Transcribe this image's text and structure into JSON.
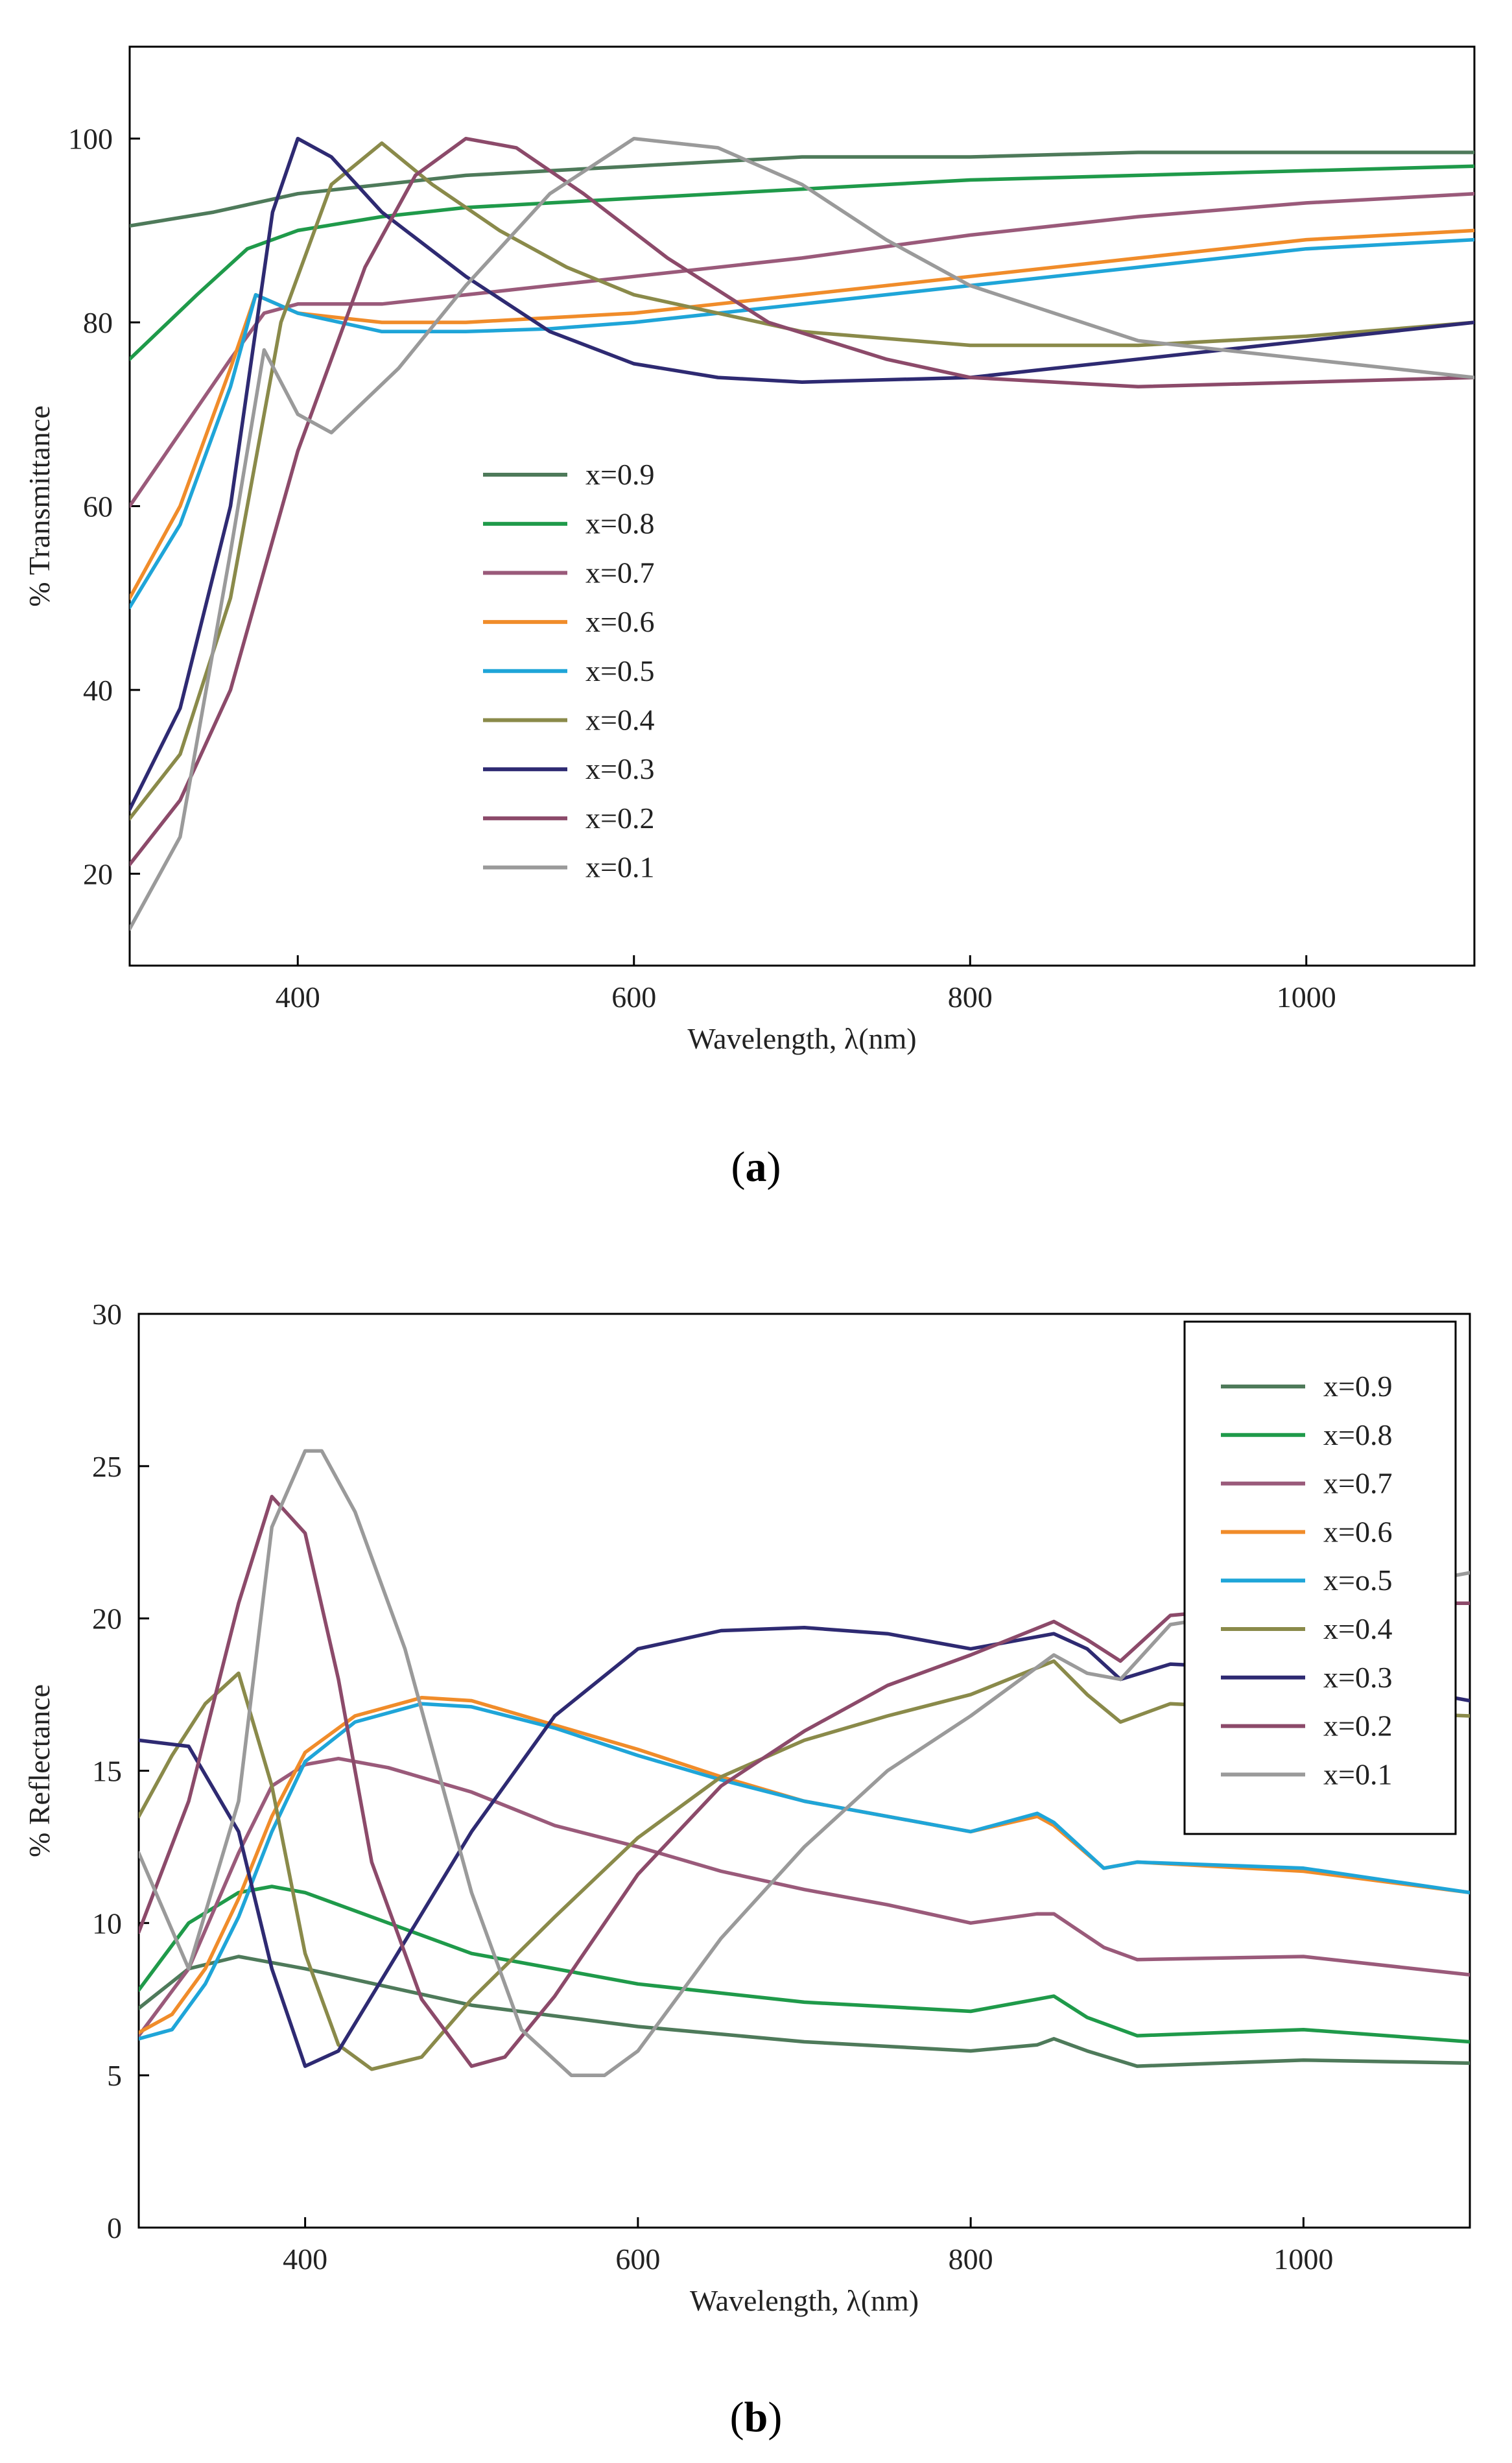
{
  "chart_data": [
    {
      "type": "line",
      "panel": "a",
      "xlabel": "Wavelength, λ(nm)",
      "ylabel": "% Transmittance",
      "xlim": [
        300,
        1100
      ],
      "ylim": [
        10,
        110
      ],
      "xticks": [
        400,
        600,
        800,
        1000
      ],
      "yticks": [
        20,
        40,
        60,
        80,
        100
      ],
      "legend_position": "center-left",
      "legend_frame": false,
      "series": [
        {
          "name": "x=0.9",
          "color": "#4e7a5a",
          "x": [
            300,
            350,
            400,
            500,
            600,
            700,
            800,
            900,
            1000,
            1100
          ],
          "y": [
            90.5,
            92,
            94,
            96,
            97,
            98,
            98,
            98.5,
            98.5,
            98.5
          ]
        },
        {
          "name": "x=0.8",
          "color": "#1f9a4a",
          "x": [
            300,
            340,
            370,
            400,
            450,
            500,
            600,
            700,
            800,
            900,
            1000,
            1100
          ],
          "y": [
            76,
            83,
            88,
            90,
            91.5,
            92.5,
            93.5,
            94.5,
            95.5,
            96,
            96.5,
            97
          ]
        },
        {
          "name": "x=0.7",
          "color": "#9a5a7a",
          "x": [
            300,
            330,
            360,
            380,
            400,
            450,
            500,
            550,
            600,
            700,
            800,
            900,
            1000,
            1100
          ],
          "y": [
            60,
            68,
            76,
            81,
            82,
            82,
            83,
            84,
            85,
            87,
            89.5,
            91.5,
            93,
            94
          ]
        },
        {
          "name": "x=0.6",
          "color": "#f08c2a",
          "x": [
            300,
            330,
            360,
            375,
            400,
            450,
            500,
            550,
            600,
            700,
            800,
            900,
            1000,
            1100
          ],
          "y": [
            50,
            60,
            75,
            83,
            81,
            80,
            80,
            80.5,
            81,
            83,
            85,
            87,
            89,
            90
          ]
        },
        {
          "name": "x=0.5",
          "color": "#1fa5d8",
          "x": [
            300,
            330,
            360,
            375,
            400,
            450,
            500,
            550,
            600,
            700,
            800,
            900,
            1000,
            1100
          ],
          "y": [
            49,
            58,
            73,
            83,
            81,
            79,
            79,
            79.3,
            80,
            82,
            84,
            86,
            88,
            89
          ]
        },
        {
          "name": "x=0.4",
          "color": "#8a8a4a",
          "x": [
            300,
            330,
            360,
            390,
            420,
            450,
            480,
            520,
            560,
            600,
            650,
            700,
            800,
            900,
            1000,
            1100
          ],
          "y": [
            26,
            33,
            50,
            80,
            95,
            99.5,
            95,
            90,
            86,
            83,
            81,
            79,
            77.5,
            77.5,
            78.5,
            80
          ]
        },
        {
          "name": "x=0.3",
          "color": "#2e2a72",
          "x": [
            300,
            330,
            360,
            385,
            400,
            420,
            450,
            500,
            550,
            600,
            650,
            700,
            800,
            900,
            1000,
            1100
          ],
          "y": [
            27,
            38,
            60,
            92,
            100,
            98,
            92,
            85,
            79,
            75.5,
            74,
            73.5,
            74,
            76,
            78,
            80
          ]
        },
        {
          "name": "x=0.2",
          "color": "#8c4a6a",
          "x": [
            300,
            330,
            360,
            400,
            440,
            470,
            500,
            530,
            570,
            620,
            680,
            750,
            800,
            900,
            1000,
            1100
          ],
          "y": [
            21,
            28,
            40,
            66,
            86,
            96,
            100,
            99,
            94,
            87,
            80,
            76,
            74,
            73,
            73.5,
            74
          ]
        },
        {
          "name": "x=0.1",
          "color": "#9a9a9a",
          "x": [
            300,
            330,
            360,
            380,
            400,
            420,
            460,
            500,
            550,
            600,
            650,
            700,
            750,
            800,
            900,
            1000,
            1100
          ],
          "y": [
            14,
            24,
            55,
            77,
            70,
            68,
            75,
            84,
            94,
            100,
            99,
            95,
            89,
            84,
            78,
            76,
            74
          ]
        }
      ]
    },
    {
      "type": "line",
      "panel": "b",
      "xlabel": "Wavelength, λ(nm)",
      "ylabel": "% Reflectance",
      "xlim": [
        300,
        1100
      ],
      "ylim": [
        0,
        30
      ],
      "xticks": [
        400,
        600,
        800,
        1000
      ],
      "yticks": [
        0,
        5,
        10,
        15,
        20,
        25,
        30
      ],
      "legend_position": "top-right",
      "legend_frame": true,
      "series": [
        {
          "name": "x=0.9",
          "color": "#4e7a5a",
          "x": [
            300,
            330,
            360,
            400,
            500,
            600,
            700,
            800,
            840,
            850,
            870,
            900,
            1000,
            1100
          ],
          "y": [
            7.2,
            8.5,
            8.9,
            8.5,
            7.3,
            6.6,
            6.1,
            5.8,
            6,
            6.2,
            5.8,
            5.3,
            5.5,
            5.4
          ]
        },
        {
          "name": "x=0.8",
          "color": "#1f9a4a",
          "x": [
            300,
            330,
            360,
            380,
            400,
            450,
            500,
            600,
            700,
            800,
            840,
            850,
            870,
            900,
            1000,
            1100
          ],
          "y": [
            7.8,
            10,
            11,
            11.2,
            11,
            10,
            9,
            8,
            7.4,
            7.1,
            7.5,
            7.6,
            6.9,
            6.3,
            6.5,
            6.1
          ]
        },
        {
          "name": "x=0.7",
          "color": "#9a5a7a",
          "x": [
            300,
            330,
            360,
            380,
            400,
            420,
            450,
            500,
            550,
            600,
            650,
            700,
            750,
            800,
            840,
            850,
            880,
            900,
            1000,
            1100
          ],
          "y": [
            6.3,
            8.5,
            12.3,
            14.5,
            15.2,
            15.4,
            15.1,
            14.3,
            13.2,
            12.5,
            11.7,
            11.1,
            10.6,
            10,
            10.3,
            10.3,
            9.2,
            8.8,
            8.9,
            8.3
          ]
        },
        {
          "name": "x=0.6",
          "color": "#f08c2a",
          "x": [
            300,
            320,
            340,
            360,
            380,
            400,
            430,
            470,
            500,
            550,
            600,
            650,
            700,
            800,
            840,
            850,
            880,
            900,
            1000,
            1100
          ],
          "y": [
            6.4,
            7,
            8.5,
            10.8,
            13.5,
            15.6,
            16.8,
            17.4,
            17.3,
            16.5,
            15.7,
            14.8,
            14,
            13,
            13.5,
            13.2,
            11.8,
            12,
            11.7,
            11
          ]
        },
        {
          "name": "x=o.5",
          "color": "#1fa5d8",
          "x": [
            300,
            320,
            340,
            360,
            380,
            400,
            430,
            470,
            500,
            550,
            600,
            650,
            700,
            800,
            840,
            850,
            880,
            900,
            1000,
            1100
          ],
          "y": [
            6.2,
            6.5,
            8,
            10.2,
            13,
            15.3,
            16.6,
            17.2,
            17.1,
            16.4,
            15.5,
            14.7,
            14,
            13,
            13.6,
            13.3,
            11.8,
            12,
            11.8,
            11
          ]
        },
        {
          "name": "x=0.4",
          "color": "#8a8a4a",
          "x": [
            300,
            320,
            340,
            360,
            380,
            400,
            420,
            440,
            470,
            500,
            550,
            600,
            650,
            700,
            750,
            800,
            850,
            870,
            890,
            920,
            1000,
            1100
          ],
          "y": [
            13.5,
            15.5,
            17.2,
            18.2,
            14.5,
            9,
            6,
            5.2,
            5.6,
            7.5,
            10.2,
            12.8,
            14.8,
            16,
            16.8,
            17.5,
            18.6,
            17.5,
            16.6,
            17.2,
            17,
            16.8
          ]
        },
        {
          "name": "x=0.3",
          "color": "#2e2a72",
          "x": [
            300,
            330,
            360,
            380,
            400,
            420,
            450,
            500,
            550,
            600,
            650,
            700,
            750,
            800,
            850,
            870,
            890,
            920,
            1000,
            1100
          ],
          "y": [
            16,
            15.8,
            13,
            8.5,
            5.3,
            5.8,
            8.5,
            13,
            16.8,
            19,
            19.6,
            19.7,
            19.5,
            19,
            19.5,
            19,
            18,
            18.5,
            18.3,
            17.3
          ]
        },
        {
          "name": "x=0.2",
          "color": "#8c4a6a",
          "x": [
            300,
            330,
            360,
            380,
            400,
            420,
            440,
            470,
            500,
            520,
            550,
            600,
            650,
            700,
            750,
            800,
            850,
            870,
            890,
            920,
            1000,
            1100
          ],
          "y": [
            9.7,
            14,
            20.5,
            24,
            22.8,
            18,
            12,
            7.5,
            5.3,
            5.6,
            7.6,
            11.6,
            14.5,
            16.3,
            17.8,
            18.8,
            19.9,
            19.3,
            18.6,
            20.1,
            20.5,
            20.5
          ]
        },
        {
          "name": "x=0.1",
          "color": "#9a9a9a",
          "x": [
            300,
            330,
            360,
            380,
            400,
            410,
            430,
            460,
            500,
            530,
            560,
            580,
            600,
            650,
            700,
            750,
            800,
            850,
            870,
            890,
            920,
            1000,
            1100
          ],
          "y": [
            12.3,
            8.5,
            14,
            23,
            25.5,
            25.5,
            23.5,
            19,
            11,
            6.5,
            5,
            5,
            5.8,
            9.5,
            12.5,
            15,
            16.8,
            18.8,
            18.2,
            18,
            19.8,
            20.5,
            21.5
          ]
        }
      ]
    }
  ],
  "panel_labels": {
    "a": "a",
    "b": "b"
  }
}
